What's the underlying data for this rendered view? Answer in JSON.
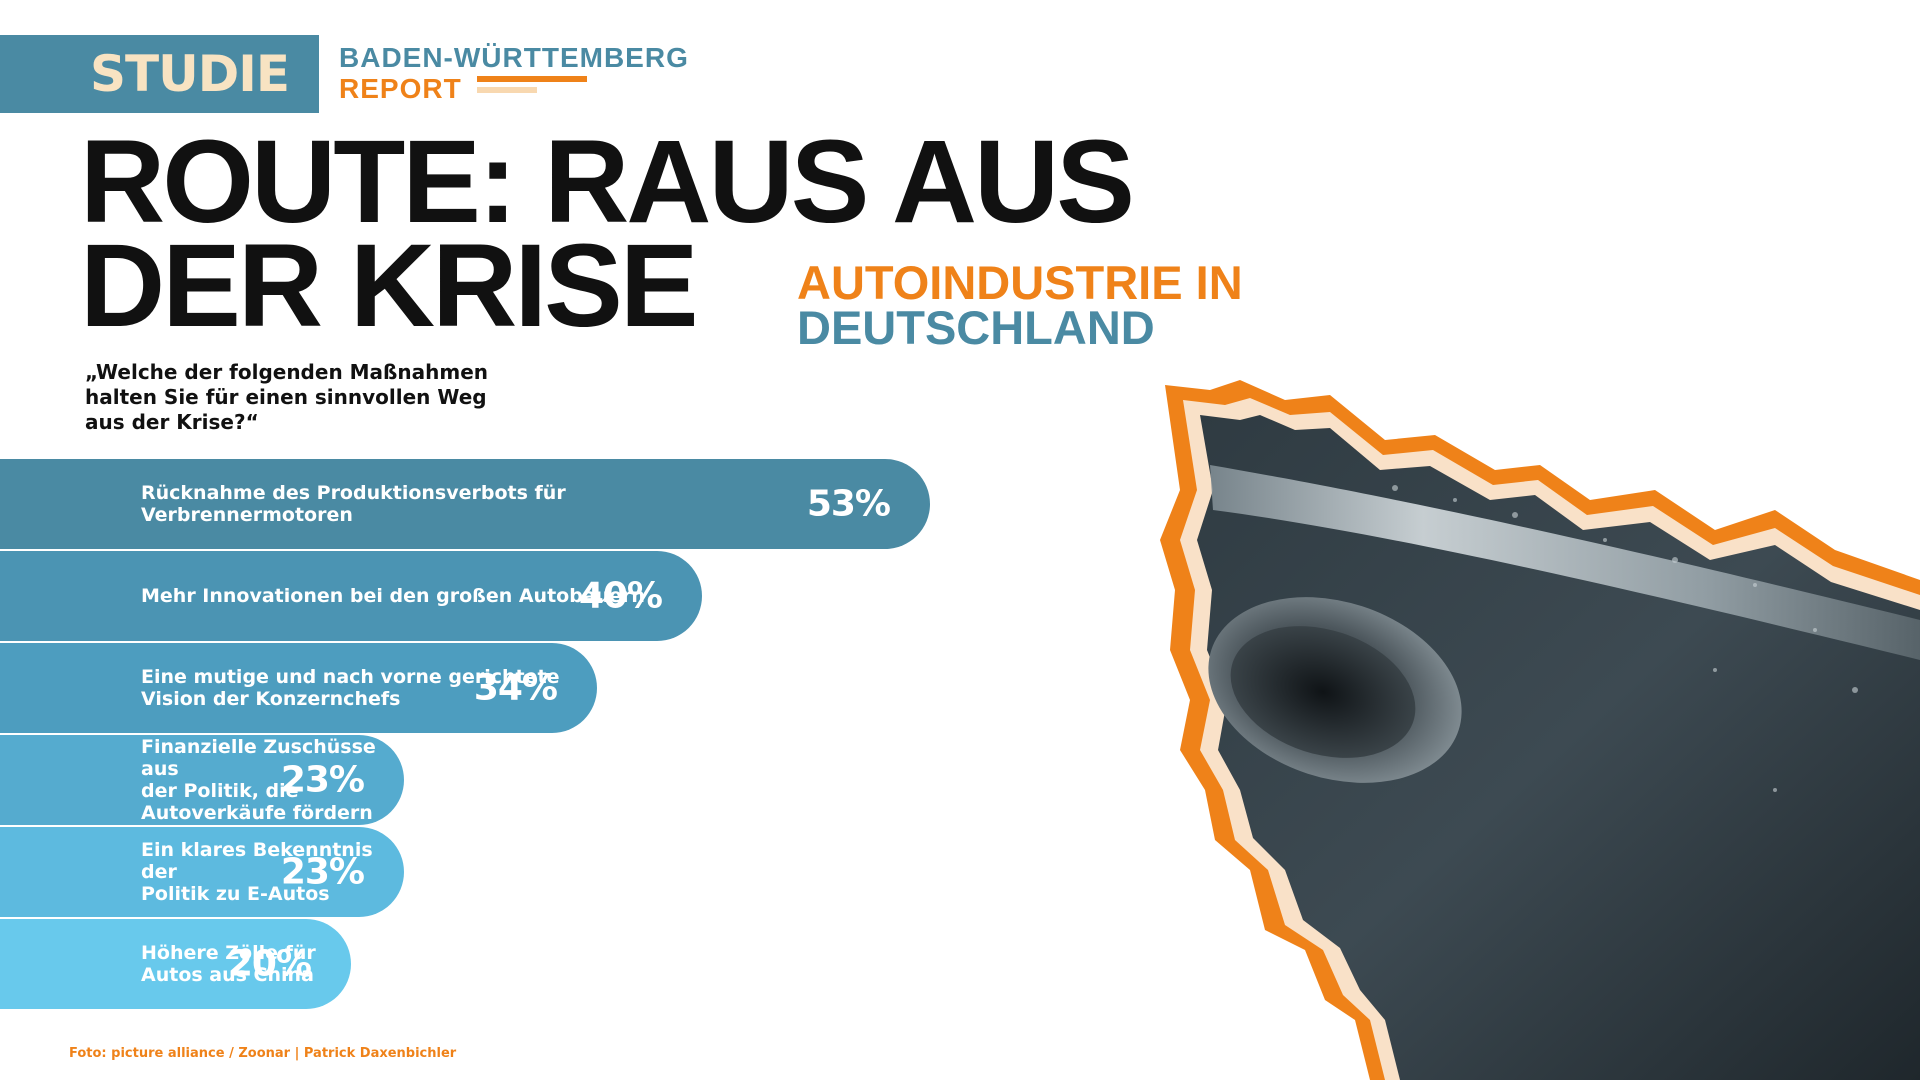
{
  "header": {
    "badge": "STUDIE",
    "report_title": "BADEN-WÜRTTEMBERG",
    "report_subtitle": "REPORT"
  },
  "headline": {
    "line1": "ROUTE: RAUS AUS",
    "line2": "DER KRISE"
  },
  "subheadline": {
    "line1": "AUTOINDUSTRIE IN",
    "line2": "DEUTSCHLAND"
  },
  "question": "„Welche der folgenden Maßnahmen halten Sie für einen sinnvollen Weg aus der Krise?“",
  "credit": "Foto: picture alliance / Zoonar | Patrick Daxenbichler",
  "colors": {
    "accent_orange": "#ef8219",
    "accent_blue": "#4a8aa3",
    "bar_colors": [
      "#4a8aa3",
      "#4b94b3",
      "#4d9dbf",
      "#55abcf",
      "#5dbadf",
      "#68c9ec"
    ]
  },
  "chart_data": {
    "type": "bar",
    "orientation": "horizontal",
    "categories": [
      "Rücknahme des Produktionsverbots für\nVerbrennermotoren",
      "Mehr Innovationen bei den großen Autobauern",
      "Eine mutige und nach vorne gerichtete\nVision der Konzernchefs",
      "Finanzielle Zuschüsse aus\nder Politik, die Autoverkäufe fördern",
      "Ein klares Bekenntnis der\nPolitik zu E-Autos",
      "Höhere Zölle für Autos aus China"
    ],
    "values": [
      53,
      40,
      34,
      23,
      23,
      20
    ],
    "value_labels": [
      "53%",
      "40%",
      "34%",
      "23%",
      "23%",
      "20%"
    ],
    "unit": "%",
    "title": "",
    "xlabel": "",
    "ylabel": "",
    "grid": false
  }
}
